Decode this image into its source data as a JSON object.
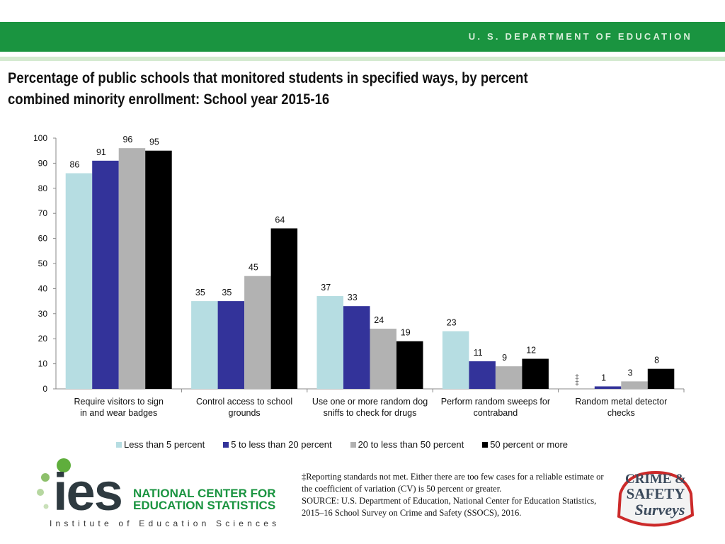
{
  "header": {
    "department": "U. S. DEPARTMENT OF EDUCATION",
    "title": "Percentage of public schools that monitored students in specified ways, by percent combined minority enrollment: School year 2015-16"
  },
  "colors": {
    "header_green": "#1a9440",
    "series": [
      "#b6dde2",
      "#33339a",
      "#b2b2b2",
      "#000000"
    ]
  },
  "chart_data": {
    "type": "bar",
    "title": "Percentage of public schools that monitored students in specified ways, by percent combined minority enrollment: School year 2015-16",
    "xlabel": "",
    "ylabel": "",
    "ylim": [
      0,
      100
    ],
    "yticks": [
      0,
      10,
      20,
      30,
      40,
      50,
      60,
      70,
      80,
      90,
      100
    ],
    "grid": false,
    "legend_position": "bottom",
    "categories": [
      "Require visitors to sign in and wear badges",
      "Control access to school grounds",
      "Use one or more random dog sniffs to check for drugs",
      "Perform random sweeps for contraband",
      "Random metal detector checks"
    ],
    "series": [
      {
        "name": "Less than 5 percent",
        "values": [
          86,
          35,
          37,
          23,
          null
        ],
        "labels": [
          "86",
          "35",
          "37",
          "23",
          "‡"
        ]
      },
      {
        "name": "5 to less than 20 percent",
        "values": [
          91,
          35,
          33,
          11,
          1
        ],
        "labels": [
          "91",
          "35",
          "33",
          "11",
          "1"
        ]
      },
      {
        "name": "20 to less than 50 percent",
        "values": [
          96,
          45,
          24,
          9,
          3
        ],
        "labels": [
          "96",
          "45",
          "24",
          "9",
          "3"
        ]
      },
      {
        "name": "50 percent or more",
        "values": [
          95,
          64,
          19,
          12,
          8
        ],
        "labels": [
          "95",
          "64",
          "19",
          "12",
          "8"
        ]
      }
    ]
  },
  "footnote": {
    "line1": "‡Reporting standards not met. Either there are too few cases for a reliable estimate or the coefficient of variation (CV) is 50 percent or greater.",
    "line2": "SOURCE: U.S. Department of Education, National Center for Education Statistics, 2015–16 School Survey on Crime and Safety (SSOCS), 2016."
  },
  "logos": {
    "ies_text": "ies",
    "ies_line1": "NATIONAL CENTER FOR",
    "ies_line2": "EDUCATION STATISTICS",
    "ies_tagline": "Institute of Education Sciences",
    "crime_line1": "CRIME &",
    "crime_line2": "SAFETY",
    "crime_line3": "Surveys"
  }
}
